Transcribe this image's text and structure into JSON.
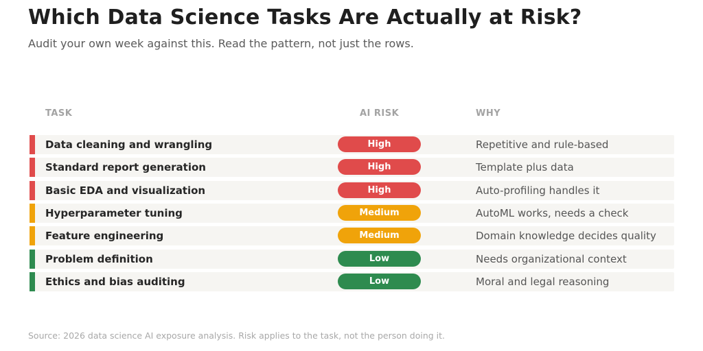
{
  "header": {
    "title": "Which Data Science Tasks Are Actually at Risk?",
    "subtitle": "Audit your own week against this. Read the pattern, not just the rows."
  },
  "columns": {
    "task": "TASK",
    "risk": "AI RISK",
    "why": "WHY"
  },
  "risk_colors": {
    "High": "#e04b4b",
    "Medium": "#f0a30a",
    "Low": "#2e8b4f"
  },
  "chart_data": {
    "type": "table",
    "columns": [
      "TASK",
      "AI RISK",
      "WHY"
    ],
    "rows": [
      {
        "task": "Data cleaning and wrangling",
        "risk": "High",
        "why": "Repetitive and rule-based"
      },
      {
        "task": "Standard report generation",
        "risk": "High",
        "why": "Template plus data"
      },
      {
        "task": "Basic EDA and visualization",
        "risk": "High",
        "why": "Auto-profiling handles it"
      },
      {
        "task": "Hyperparameter tuning",
        "risk": "Medium",
        "why": "AutoML works, needs a check"
      },
      {
        "task": "Feature engineering",
        "risk": "Medium",
        "why": "Domain knowledge decides quality"
      },
      {
        "task": "Problem definition",
        "risk": "Low",
        "why": "Needs organizational context"
      },
      {
        "task": "Ethics and bias auditing",
        "risk": "Low",
        "why": "Moral and legal reasoning"
      }
    ]
  },
  "footer": {
    "source": "Source: 2026 data science AI exposure analysis. Risk applies to the task, not the person doing it."
  }
}
